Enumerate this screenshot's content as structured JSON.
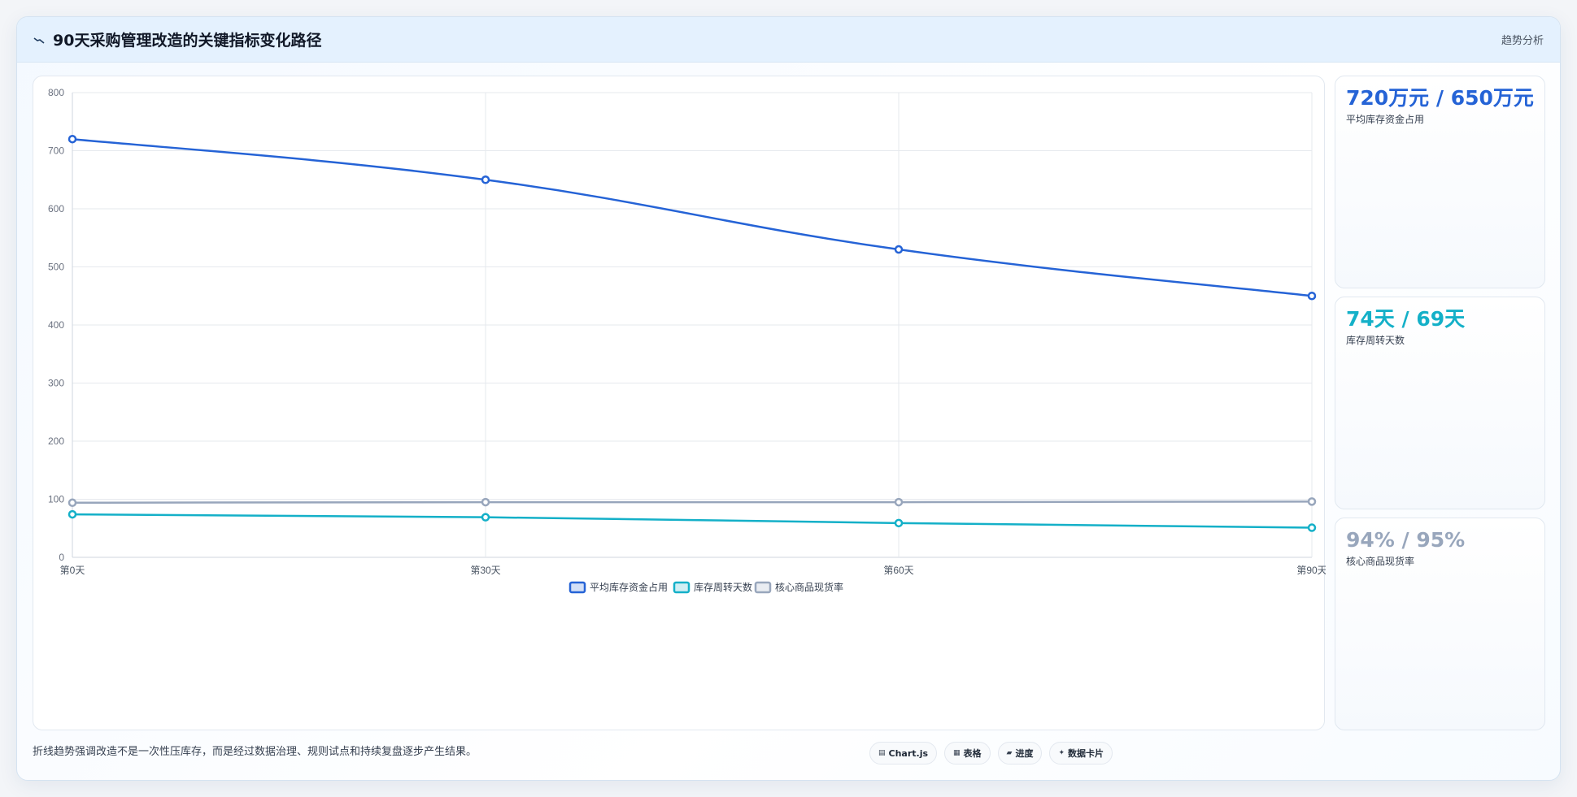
{
  "header": {
    "title": "90天采购管理改造的关键指标变化路径",
    "tag": "趋势分析"
  },
  "chart_data": {
    "type": "line",
    "categories": [
      "第0天",
      "第30天",
      "第60天",
      "第90天"
    ],
    "series": [
      {
        "name": "平均库存资金占用",
        "values": [
          720,
          650,
          530,
          450
        ],
        "color": "#2563d6"
      },
      {
        "name": "库存周转天数",
        "values": [
          74,
          69,
          59,
          51
        ],
        "color": "#14b0c8"
      },
      {
        "name": "核心商品现货率",
        "values": [
          94,
          95,
          95,
          96
        ],
        "color": "#98a6bc"
      }
    ],
    "ylim": [
      0,
      800
    ],
    "yticks": [
      0,
      100,
      200,
      300,
      400,
      500,
      600,
      700,
      800
    ],
    "grid": true,
    "legend": "bottom"
  },
  "kpis": [
    {
      "value": "720万元 / 650万元",
      "label": "平均库存资金占用",
      "color": "#2563d6"
    },
    {
      "value": "74天 / 69天",
      "label": "库存周转天数",
      "color": "#14b0c8"
    },
    {
      "value": "94% / 95%",
      "label": "核心商品现货率",
      "color": "#98a6bc"
    }
  ],
  "footer": {
    "note": "折线趋势强调改造不是一次性压库存，而是经过数据治理、规则试点和持续复盘逐步产生结果。",
    "chips": [
      {
        "icon": "chart-icon",
        "label": "Chart.js"
      },
      {
        "icon": "table-icon",
        "label": "表格"
      },
      {
        "icon": "progress-icon",
        "label": "进度"
      },
      {
        "icon": "sparkle-icon",
        "label": "数据卡片"
      }
    ]
  }
}
